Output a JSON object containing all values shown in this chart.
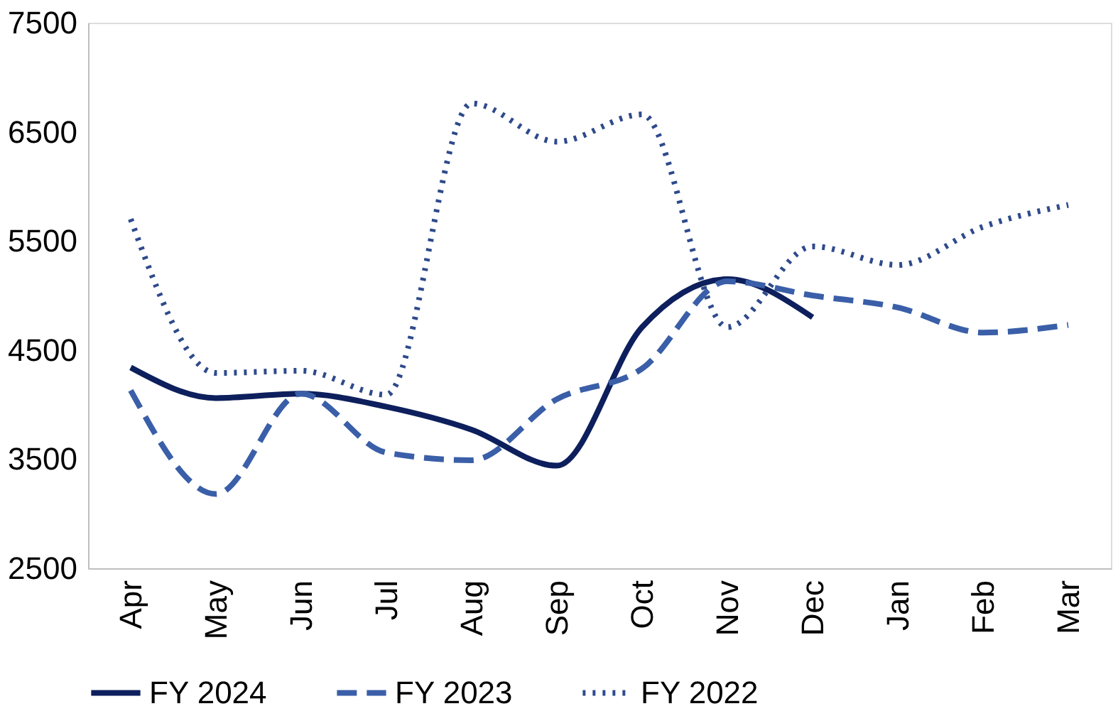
{
  "chart_data": {
    "type": "line",
    "categories": [
      "Apr",
      "May",
      "Jun",
      "Jul",
      "Aug",
      "Sep",
      "Oct",
      "Nov",
      "Dec",
      "Jan",
      "Feb",
      "Mar"
    ],
    "series": [
      {
        "name": "FY 2024",
        "color": "#0d1f5c",
        "line_style": "solid",
        "values": [
          4340,
          4060,
          4100,
          3980,
          3770,
          3440,
          4710,
          5150,
          4800,
          null,
          null,
          null
        ]
      },
      {
        "name": "FY 2023",
        "color": "#3a5fa8",
        "line_style": "dashed",
        "values": [
          4130,
          3180,
          4100,
          3560,
          3490,
          4050,
          4330,
          5130,
          5000,
          4890,
          4660,
          4730
        ]
      },
      {
        "name": "FY 2022",
        "color": "#2e4a8c",
        "line_style": "dotted",
        "values": [
          5700,
          4290,
          4310,
          4090,
          6760,
          6410,
          6660,
          4710,
          5450,
          5280,
          5630,
          5830
        ]
      }
    ],
    "ylim": [
      2500,
      7500
    ],
    "yticks": [
      2500,
      3500,
      4500,
      5500,
      6500,
      7500
    ],
    "grid": false,
    "legend": "bottom",
    "marker": "none"
  }
}
